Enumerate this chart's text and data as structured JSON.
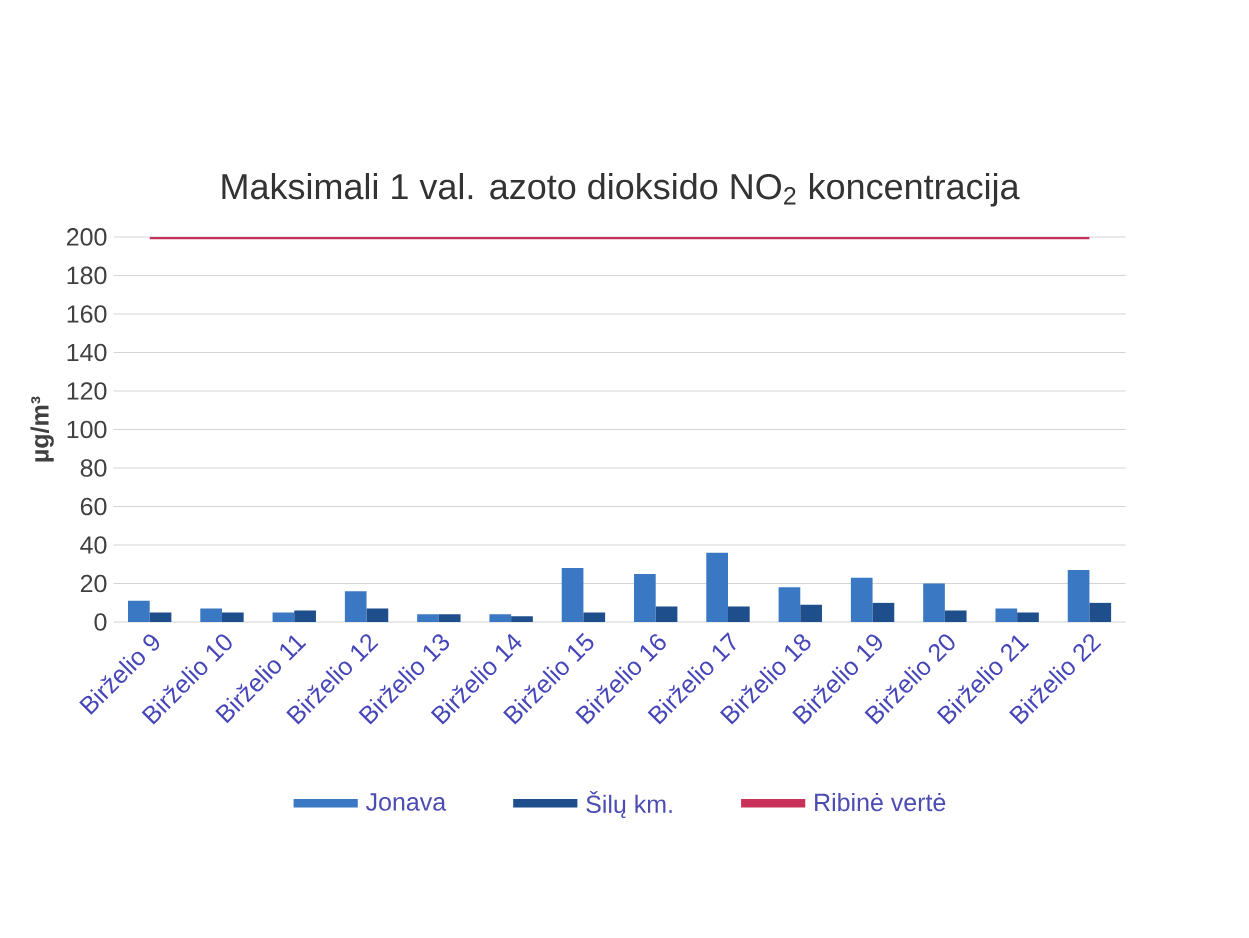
{
  "chart_data": {
    "type": "bar",
    "title": "Maksimali 1 val. azoto dioksido NO$_{2}$ koncentracija",
    "ylabel": "µg/m³",
    "categories": [
      "Birželio 9",
      "Birželio 10",
      "Birželio 11",
      "Birželio 12",
      "Birželio 13",
      "Birželio 14",
      "Birželio 15",
      "Birželio 16",
      "Birželio 17",
      "Birželio 18",
      "Birželio 19",
      "Birželio 20",
      "Birželio 21",
      "Birželio 22"
    ],
    "series": [
      {
        "name": "Jonava",
        "color": "#3a78c4",
        "values": [
          11,
          7,
          5,
          16,
          4,
          4,
          28,
          25,
          36,
          18,
          23,
          20,
          7,
          27
        ]
      },
      {
        "name": "Šilų km.",
        "color": "#1f4e8c",
        "values": [
          5,
          5,
          6,
          7,
          4,
          3,
          5,
          8,
          8,
          9,
          10,
          6,
          5,
          10
        ]
      },
      {
        "name": "Ribinė vertė",
        "type": "line",
        "color": "#c8325a",
        "values": [
          200,
          200,
          200,
          200,
          200,
          200,
          200,
          200,
          200,
          200,
          200,
          200,
          200,
          200
        ]
      }
    ],
    "ylim": [
      0,
      200
    ],
    "yticks": [
      0,
      20,
      40,
      60,
      80,
      100,
      120,
      140,
      160,
      180,
      200
    ],
    "grid": "y",
    "legend": "bottom"
  }
}
